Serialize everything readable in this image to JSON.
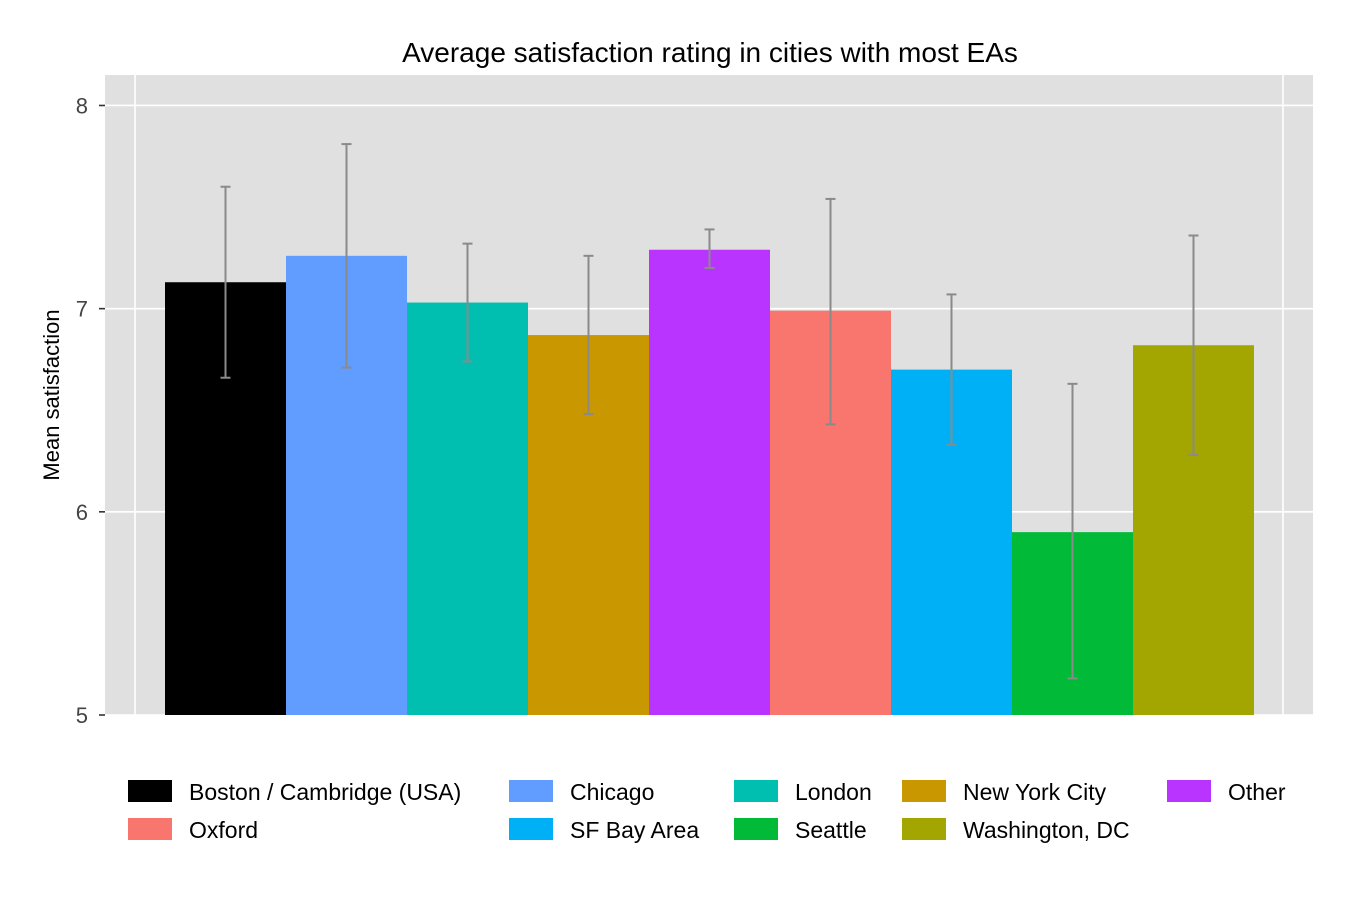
{
  "chart_data": {
    "type": "bar",
    "title": "Average satisfaction rating in cities with most EAs",
    "ylabel": "Mean satisfaction",
    "xlabel": "",
    "ylim": [
      5,
      8.15
    ],
    "yticks": [
      5,
      6,
      7,
      8
    ],
    "grid": true,
    "legend_position": "bottom",
    "categories": [
      "Boston / Cambridge (USA)",
      "Chicago",
      "London",
      "New York City",
      "Other",
      "Oxford",
      "SF Bay Area",
      "Seattle",
      "Washington, DC"
    ],
    "values": [
      7.13,
      7.26,
      7.03,
      6.87,
      7.29,
      6.99,
      6.7,
      5.9,
      6.82
    ],
    "error_low": [
      6.66,
      6.71,
      6.74,
      6.48,
      7.2,
      6.43,
      6.33,
      5.18,
      6.28
    ],
    "error_high": [
      7.6,
      7.81,
      7.32,
      7.26,
      7.39,
      7.54,
      7.07,
      6.63,
      7.36
    ],
    "colors": [
      "#000000",
      "#619CFF",
      "#00BFB0",
      "#C99800",
      "#B935FF",
      "#F8766D",
      "#00B0F6",
      "#00BA38",
      "#A3A500"
    ]
  }
}
